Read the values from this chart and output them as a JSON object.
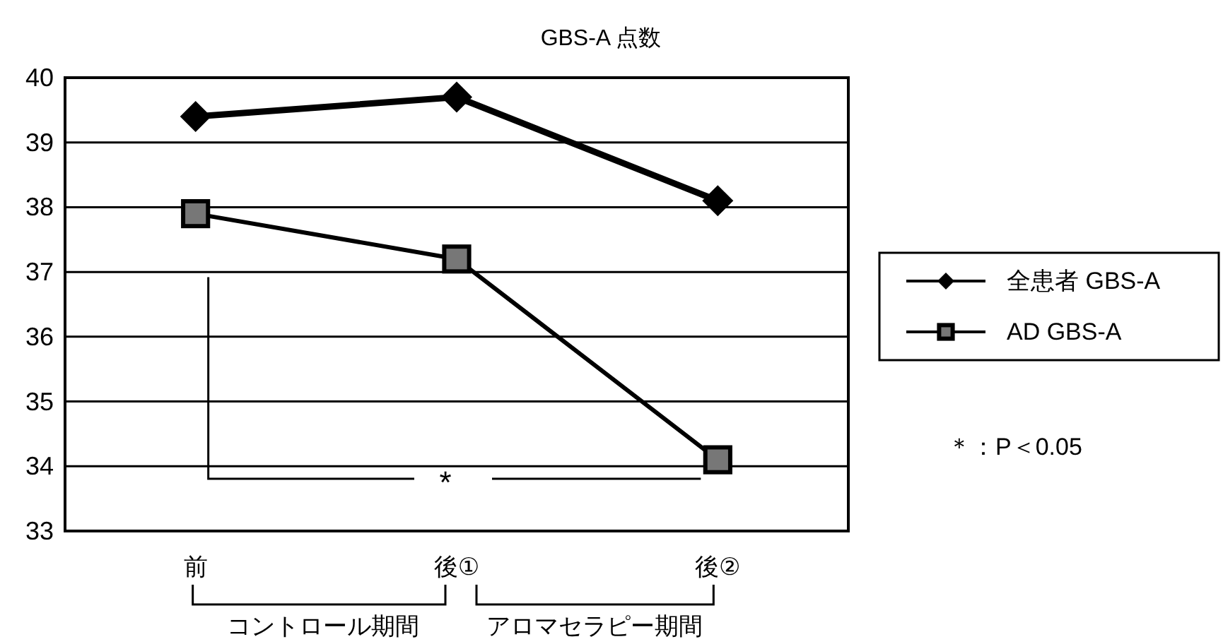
{
  "chart_data": {
    "type": "line",
    "title": "GBS-A 点数",
    "categories": [
      "前",
      "後①",
      "後②"
    ],
    "series": [
      {
        "name": "全患者 GBS-A",
        "color": "#000000",
        "marker": "diamond",
        "values": [
          39.4,
          39.7,
          38.1
        ]
      },
      {
        "name": "AD GBS-A",
        "color": "#000000",
        "marker": "square",
        "values": [
          37.9,
          37.2,
          34.1
        ]
      }
    ],
    "ylim": [
      33,
      40
    ],
    "yticks": [
      33,
      34,
      35,
      36,
      37,
      38,
      39,
      40
    ],
    "grid": "y",
    "legend": "right",
    "annotations": [
      "*",
      "＊：P＜0.05",
      "コントロール期間",
      "アロマセラピー期間"
    ]
  }
}
